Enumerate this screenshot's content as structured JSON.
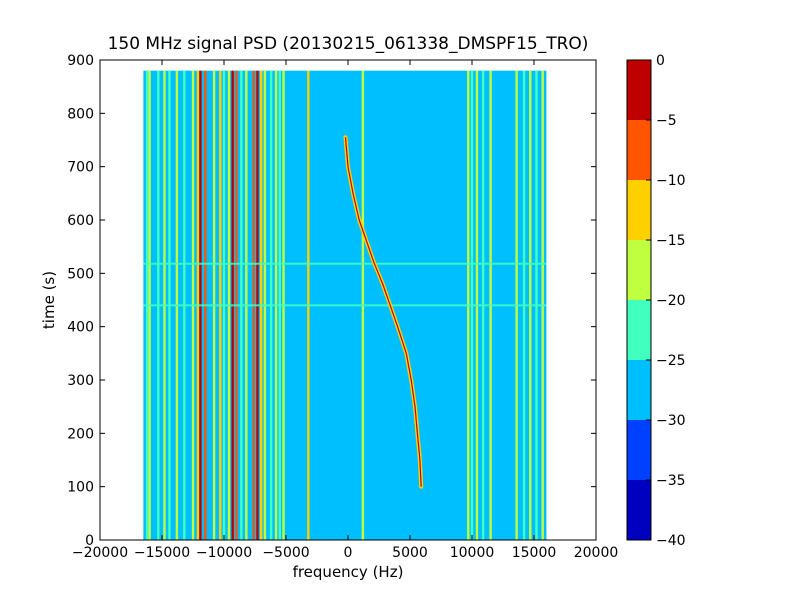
{
  "chart_data": {
    "type": "heatmap",
    "title": "150 MHz signal PSD (20130215_061338_DMSPF15_TRO)",
    "xlabel": "frequency (Hz)",
    "ylabel": "time (s)",
    "xlim": [
      -20000,
      20000
    ],
    "ylim": [
      0,
      900
    ],
    "xticks": [
      -20000,
      -15000,
      -10000,
      -5000,
      0,
      5000,
      10000,
      15000,
      20000
    ],
    "xtick_labels": [
      "−20000",
      "−15000",
      "−10000",
      "−5000",
      "0",
      "5000",
      "10000",
      "15000",
      "20000"
    ],
    "yticks": [
      0,
      100,
      200,
      300,
      400,
      500,
      600,
      700,
      800,
      900
    ],
    "ytick_labels": [
      "0",
      "100",
      "200",
      "300",
      "400",
      "500",
      "600",
      "700",
      "800",
      "900"
    ],
    "colorbar": {
      "levels": [
        -40,
        -35,
        -30,
        -25,
        -20,
        -15,
        -10,
        -5,
        0
      ],
      "tick_labels": [
        "−40",
        "−35",
        "−30",
        "−25",
        "−20",
        "−15",
        "−10",
        "−5",
        "0"
      ],
      "colors": [
        "#0000bf",
        "#0040ff",
        "#00bfff",
        "#40ffbf",
        "#bfff40",
        "#ffd000",
        "#ff5500",
        "#bf0000"
      ]
    },
    "data_extent": {
      "freq": [
        -16500,
        16000
      ],
      "time": [
        0,
        880
      ]
    },
    "background_level": -27.5,
    "vertical_lines": [
      {
        "freq": -16200,
        "level": -22.5
      },
      {
        "freq": -16000,
        "level": -17.5
      },
      {
        "freq": -15300,
        "level": -22.5
      },
      {
        "freq": -14800,
        "level": -17.5
      },
      {
        "freq": -14400,
        "level": -22.5
      },
      {
        "freq": -13800,
        "level": -17.5
      },
      {
        "freq": -13200,
        "level": -22.5
      },
      {
        "freq": -12500,
        "level": -17.5
      },
      {
        "freq": -12100,
        "level": -12.5
      },
      {
        "freq": -11900,
        "level": -2.5
      },
      {
        "freq": -11500,
        "level": -7.5
      },
      {
        "freq": -10800,
        "level": -17.5
      },
      {
        "freq": -10300,
        "level": -12.5
      },
      {
        "freq": -10000,
        "level": -22.5
      },
      {
        "freq": -9600,
        "level": -17.5
      },
      {
        "freq": -9300,
        "level": -2.5
      },
      {
        "freq": -9000,
        "level": -7.5
      },
      {
        "freq": -8600,
        "level": -22.5
      },
      {
        "freq": -8200,
        "level": -17.5
      },
      {
        "freq": -7600,
        "level": -7.5
      },
      {
        "freq": -7300,
        "level": -2.5
      },
      {
        "freq": -7000,
        "level": -12.5
      },
      {
        "freq": -6700,
        "level": -17.5
      },
      {
        "freq": -6200,
        "level": -22.5
      },
      {
        "freq": -5800,
        "level": -17.5
      },
      {
        "freq": -5500,
        "level": -22.5
      },
      {
        "freq": -5200,
        "level": -17.5
      },
      {
        "freq": -3200,
        "level": -12.5
      },
      {
        "freq": 1200,
        "level": -17.5
      },
      {
        "freq": 9700,
        "level": -17.5
      },
      {
        "freq": 10000,
        "level": -22.5
      },
      {
        "freq": 10400,
        "level": -17.5
      },
      {
        "freq": 10900,
        "level": -22.5
      },
      {
        "freq": 11500,
        "level": -17.5
      },
      {
        "freq": 13600,
        "level": -17.5
      },
      {
        "freq": 14200,
        "level": -22.5
      },
      {
        "freq": 14700,
        "level": -17.5
      },
      {
        "freq": 15200,
        "level": -22.5
      },
      {
        "freq": 15700,
        "level": -17.5
      }
    ],
    "horizontal_streaks": [
      {
        "time": 518,
        "from": -16500,
        "to": 16000,
        "level": -22.5
      },
      {
        "time": 440,
        "from": -16500,
        "to": 16000,
        "level": -22.5
      }
    ],
    "doppler_trace": [
      {
        "t": 755,
        "f": -200
      },
      {
        "t": 700,
        "f": 0
      },
      {
        "t": 650,
        "f": 400
      },
      {
        "t": 600,
        "f": 900
      },
      {
        "t": 560,
        "f": 1500
      },
      {
        "t": 520,
        "f": 2100
      },
      {
        "t": 480,
        "f": 2800
      },
      {
        "t": 440,
        "f": 3400
      },
      {
        "t": 400,
        "f": 4000
      },
      {
        "t": 350,
        "f": 4700
      },
      {
        "t": 300,
        "f": 5100
      },
      {
        "t": 250,
        "f": 5400
      },
      {
        "t": 200,
        "f": 5600
      },
      {
        "t": 150,
        "f": 5800
      },
      {
        "t": 100,
        "f": 5900
      }
    ],
    "doppler_trace_level": -12.5,
    "doppler_trace_core_level": -2.5,
    "grid": false
  }
}
